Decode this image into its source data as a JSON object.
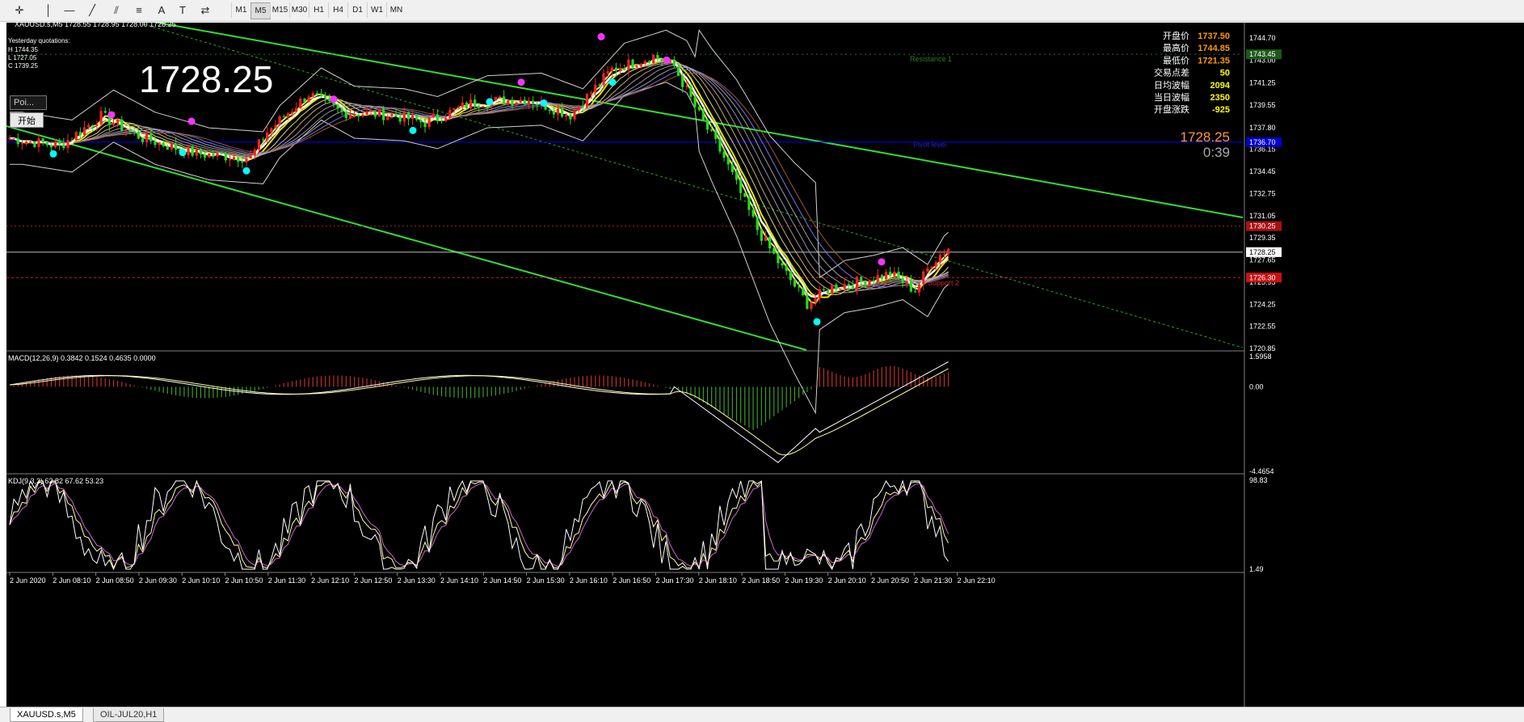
{
  "toolbar": {
    "tools": [
      {
        "name": "crosshair-icon",
        "glyph": "✛"
      },
      {
        "name": "vertical-line-icon",
        "glyph": "│"
      },
      {
        "name": "horizontal-line-icon",
        "glyph": "—"
      },
      {
        "name": "trendline-icon",
        "glyph": "╱"
      },
      {
        "name": "equidistant-channel-icon",
        "glyph": "⫽"
      },
      {
        "name": "fibonacci-icon",
        "glyph": "≡"
      },
      {
        "name": "text-icon",
        "glyph": "A"
      },
      {
        "name": "text-label-icon",
        "glyph": "T"
      },
      {
        "name": "shapes-icon",
        "glyph": "⇄"
      }
    ],
    "timeframes": [
      "M1",
      "M5",
      "M15",
      "M30",
      "H1",
      "H4",
      "D1",
      "W1",
      "MN"
    ],
    "active_timeframe": "M5"
  },
  "header": {
    "title": "XAUUSD.s,M5  1728.55 1728.95 1728.00 1728.25",
    "yesterday_label": "Yesterday quotations:",
    "yesterday_high": "H 1744.35",
    "yesterday_low": "L 1727.05",
    "yesterday_close": "C 1739.25",
    "big_price": "1728.25"
  },
  "buttons": {
    "poi_label": "Poi...",
    "start_label": "开始"
  },
  "info_panel": [
    {
      "label": "开盘价",
      "value": "1737.50",
      "color": "#ff9900"
    },
    {
      "label": "最高价",
      "value": "1744.85",
      "color": "#ff9900"
    },
    {
      "label": "最低价",
      "value": "1721.35",
      "color": "#ff9900"
    },
    {
      "label": "交易点差",
      "value": "50",
      "color": "#ffff00"
    },
    {
      "label": "日均波幅",
      "value": "2094",
      "color": "#ffff00"
    },
    {
      "label": "当日波幅",
      "value": "2350",
      "color": "#ffff00"
    },
    {
      "label": "开盘涨跌",
      "value": "-925",
      "color": "#ffff00"
    }
  ],
  "current_price": "1728.25",
  "countdown": "0:39",
  "annotations": {
    "resistance": "Resistance 1",
    "pivot": "Pivot level",
    "support": "Support 2"
  },
  "price_axis": [
    "1744.70",
    "1743.00",
    "1741.25",
    "1739.55",
    "1737.80",
    "1736.15",
    "1734.45",
    "1732.75",
    "1731.05",
    "1729.35",
    "1727.65",
    "1725.95",
    "1724.25",
    "1722.55",
    "1720.85"
  ],
  "price_markers": {
    "resistance": "1743.45",
    "pivot": "1736.70",
    "upper_red": "1730.25",
    "current": "1728.25",
    "lower_red": "1726.30"
  },
  "macd": {
    "label": "MACD(12,26,9) 0.3842 0.1524 0.4635 0.0000",
    "axis": [
      "1.5958",
      "0.00",
      "-4.4654"
    ]
  },
  "kdj": {
    "label": "KDJ(9,3,3) 62.82 67.62 53.23",
    "axis": [
      "98.83",
      "1.49"
    ]
  },
  "time_axis": [
    "2 Jun 2020",
    "2 Jun 08:10",
    "2 Jun 08:50",
    "2 Jun 09:30",
    "2 Jun 10:10",
    "2 Jun 10:50",
    "2 Jun 11:30",
    "2 Jun 12:10",
    "2 Jun 12:50",
    "2 Jun 13:30",
    "2 Jun 14:10",
    "2 Jun 14:50",
    "2 Jun 15:30",
    "2 Jun 16:10",
    "2 Jun 16:50",
    "2 Jun 17:30",
    "2 Jun 18:10",
    "2 Jun 18:50",
    "2 Jun 19:30",
    "2 Jun 20:10",
    "2 Jun 20:50",
    "2 Jun 21:30",
    "2 Jun 22:10"
  ],
  "tabs": [
    "XAUUSD.s,M5",
    "OIL-JUL20,H1"
  ],
  "active_tab": 0,
  "colors": {
    "bull": "#ff2020",
    "bear": "#22dd22",
    "channel": "#33dd33",
    "ema_white": "#ffffff",
    "ema_yellow": "#ffff00",
    "pivot": "#0000ff",
    "red_level": "#ff3030",
    "macd_pos": "#c0302a",
    "macd_neg": "#3a9e2a"
  }
}
